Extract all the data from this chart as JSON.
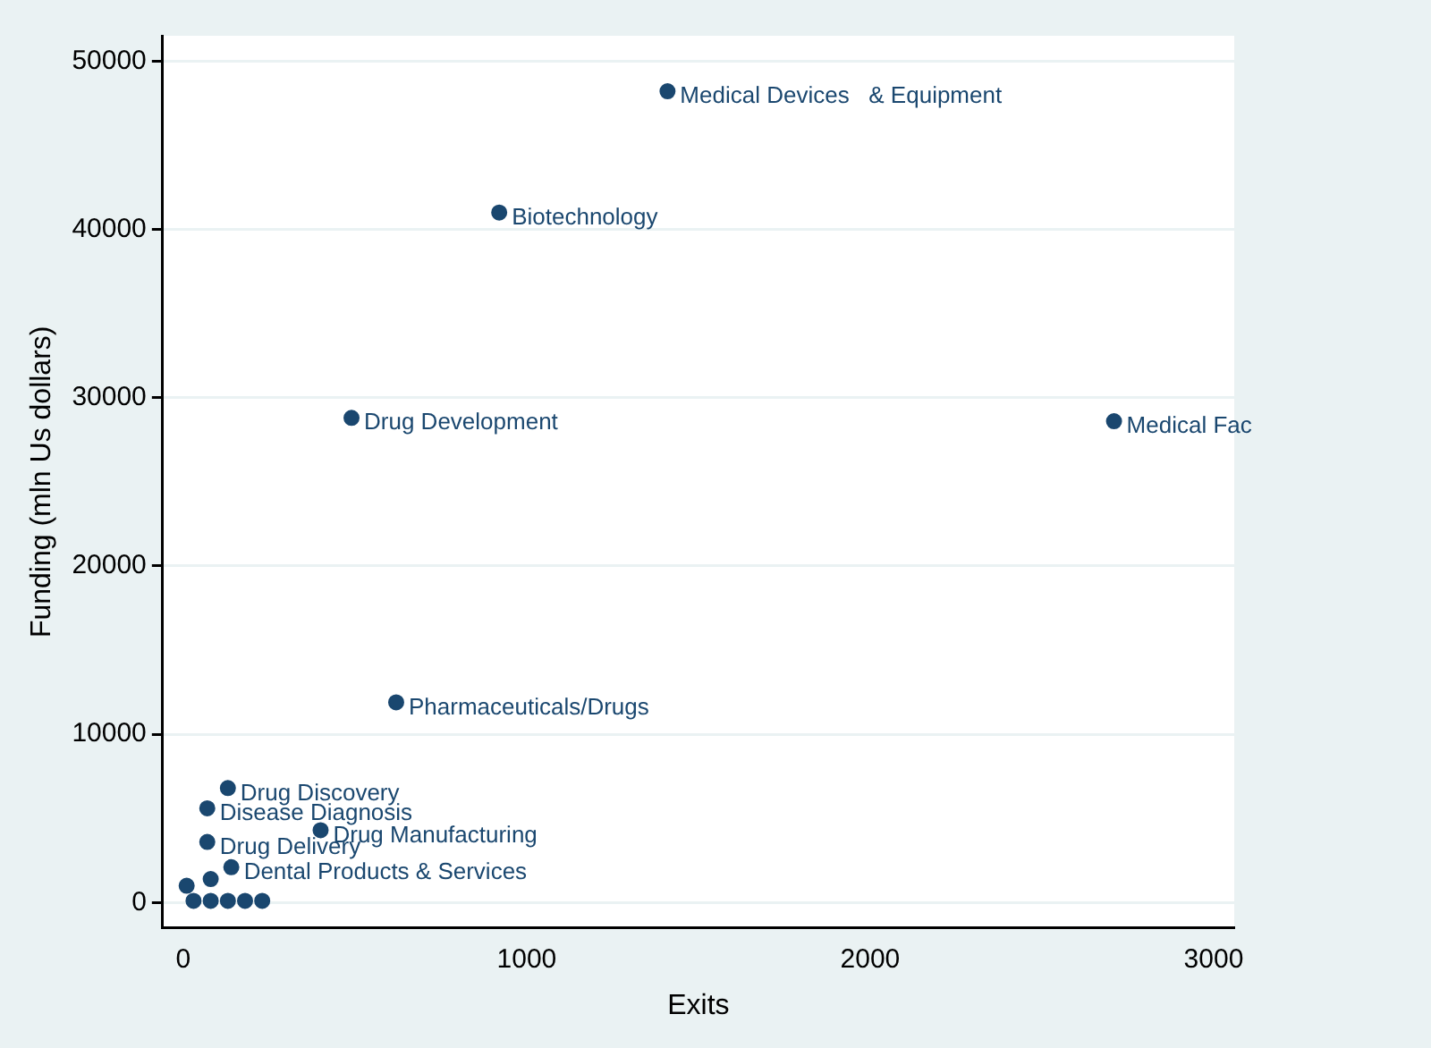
{
  "chart_data": {
    "type": "scatter",
    "xlabel": "Exits",
    "ylabel": "Funding (mln Us dollars)",
    "x": [
      1410,
      920,
      490,
      2710,
      620,
      130,
      70,
      400,
      70,
      140,
      80,
      10,
      30,
      80,
      130,
      180,
      230
    ],
    "values": [
      48200,
      41000,
      28800,
      28600,
      11900,
      6800,
      5600,
      4300,
      3600,
      2100,
      1400,
      1000,
      100,
      100,
      100,
      100,
      100
    ],
    "value_labels": [
      "Medical Devices   & Equipment",
      "Biotechnology",
      "Drug Development",
      "Medical Fac",
      "Pharmaceuticals/Drugs",
      "Drug Discovery",
      "Disease Diagnosis",
      "Drug Manufacturing",
      "Drug Delivery",
      "Dental Products & Services",
      null,
      null,
      null,
      null,
      null,
      null,
      null
    ],
    "color": "#1a476f",
    "marker": "circle",
    "grid": "y",
    "xlim": [
      -60,
      3060
    ],
    "xticks": [
      0,
      1000,
      2000,
      3000
    ],
    "ylim": [
      -1500,
      51500
    ],
    "yticks": [
      0,
      10000,
      20000,
      30000,
      40000,
      50000
    ]
  }
}
